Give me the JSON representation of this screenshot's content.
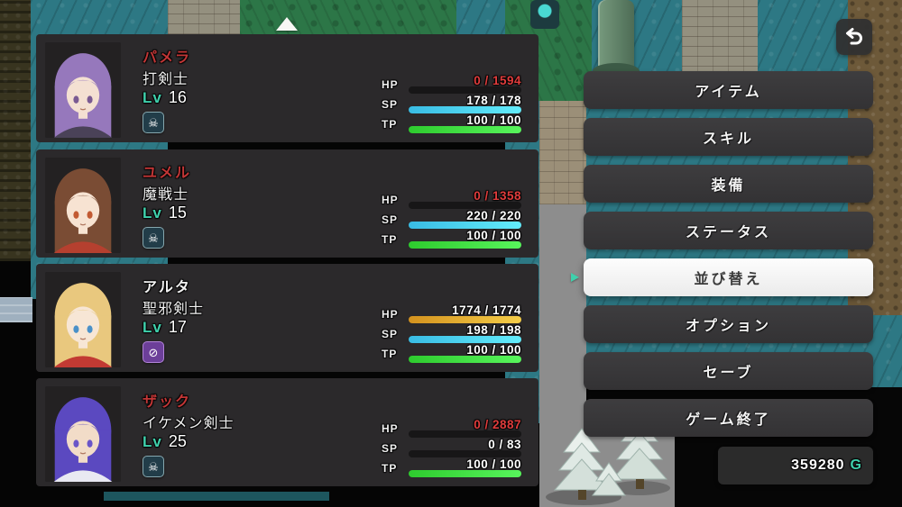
{
  "colors": {
    "accent": "#3fd0ac",
    "dead_name": "#c23636",
    "hp_depleted": "#e03c3c",
    "hp_bar": [
      "#d4921e",
      "#f5ce49"
    ],
    "sp_bar": [
      "#39bce4",
      "#63ecfb"
    ],
    "tp_bar": [
      "#2ecb2e",
      "#58f55c"
    ]
  },
  "ui": {
    "back_icon": "return-arrow",
    "cursor_icon": "selection-cursor",
    "map_marker_icon": "white-up-triangle"
  },
  "menu": {
    "items": [
      {
        "label": "アイテム",
        "selected": false
      },
      {
        "label": "スキル",
        "selected": false
      },
      {
        "label": "装備",
        "selected": false
      },
      {
        "label": "ステータス",
        "selected": false
      },
      {
        "label": "並び替え",
        "selected": true
      },
      {
        "label": "オプション",
        "selected": false
      },
      {
        "label": "セーブ",
        "selected": false
      },
      {
        "label": "ゲーム終了",
        "selected": false
      }
    ],
    "gold": {
      "amount": "359280",
      "unit": "G"
    }
  },
  "party": [
    {
      "name": "パメラ",
      "class": "打剣士",
      "lv_label": "Lv",
      "level": "16",
      "dead": true,
      "status_icon": {
        "type": "death-skull",
        "glyph": "☠",
        "bg": "#223d49",
        "border": "#86a7ae"
      },
      "portrait": {
        "hair": "#9678bc",
        "skin": "#f4e0d2",
        "accent": "#4a4258",
        "eyes": "#7a5a92"
      },
      "stats": {
        "hp": {
          "label": "HP",
          "current": 0,
          "max": 1594,
          "text": "0 / 1594"
        },
        "sp": {
          "label": "SP",
          "current": 178,
          "max": 178,
          "text": "178 / 178"
        },
        "tp": {
          "label": "TP",
          "current": 100,
          "max": 100,
          "text": "100 / 100"
        }
      }
    },
    {
      "name": "ユメル",
      "class": "魔戦士",
      "lv_label": "Lv",
      "level": "15",
      "dead": true,
      "status_icon": {
        "type": "death-skull",
        "glyph": "☠",
        "bg": "#223d49",
        "border": "#86a7ae"
      },
      "portrait": {
        "hair": "#7a4c34",
        "skin": "#f7e3d2",
        "accent": "#b5402f",
        "eyes": "#c25a32"
      },
      "stats": {
        "hp": {
          "label": "HP",
          "current": 0,
          "max": 1358,
          "text": "0 / 1358"
        },
        "sp": {
          "label": "SP",
          "current": 220,
          "max": 220,
          "text": "220 / 220"
        },
        "tp": {
          "label": "TP",
          "current": 100,
          "max": 100,
          "text": "100 / 100"
        }
      }
    },
    {
      "name": "アルタ",
      "class": "聖邪剣士",
      "lv_label": "Lv",
      "level": "17",
      "dead": false,
      "status_icon": {
        "type": "barrier-circle-slash",
        "glyph": "⊘",
        "bg": "#6c3f99",
        "border": "#b183d8"
      },
      "portrait": {
        "hair": "#e9c87e",
        "skin": "#f7e6d5",
        "accent": "#c23a33",
        "eyes": "#4a90c8"
      },
      "stats": {
        "hp": {
          "label": "HP",
          "current": 1774,
          "max": 1774,
          "text": "1774 / 1774"
        },
        "sp": {
          "label": "SP",
          "current": 198,
          "max": 198,
          "text": "198 / 198"
        },
        "tp": {
          "label": "TP",
          "current": 100,
          "max": 100,
          "text": "100 / 100"
        }
      }
    },
    {
      "name": "ザック",
      "class": "イケメン剣士",
      "lv_label": "Lv",
      "level": "25",
      "dead": true,
      "status_icon": {
        "type": "death-skull",
        "glyph": "☠",
        "bg": "#223d49",
        "border": "#86a7ae"
      },
      "portrait": {
        "hair": "#5b49c0",
        "skin": "#f2dcc8",
        "accent": "#e9e9f2",
        "eyes": "#6a55c8"
      },
      "stats": {
        "hp": {
          "label": "HP",
          "current": 0,
          "max": 2887,
          "text": "0 / 2887"
        },
        "sp": {
          "label": "SP",
          "current": 0,
          "max": 83,
          "text": "0 / 83"
        },
        "tp": {
          "label": "TP",
          "current": 100,
          "max": 100,
          "text": "100 / 100"
        }
      }
    }
  ]
}
